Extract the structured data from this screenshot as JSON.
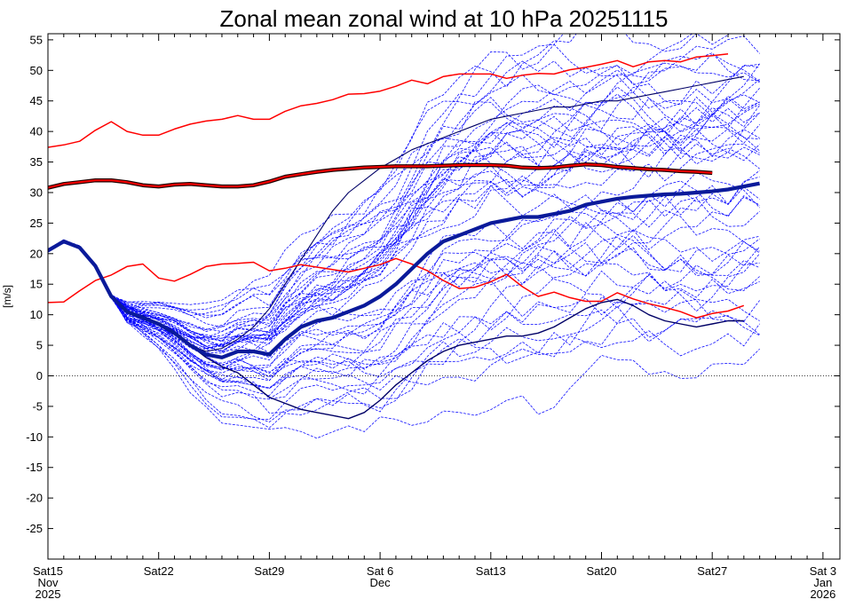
{
  "chart_data": {
    "type": "line",
    "title": "Zonal mean zonal wind at 10 hPa 20251115",
    "ylabel": "[m/s]",
    "xlabel": "",
    "xlim": [
      0,
      49
    ],
    "ylim": [
      -30,
      56
    ],
    "yticks": [
      -25,
      -20,
      -15,
      -10,
      -5,
      0,
      5,
      10,
      15,
      20,
      25,
      30,
      35,
      40,
      45,
      50,
      55
    ],
    "xticks": [
      {
        "x": 0,
        "lines": [
          "Sat15",
          "Nov",
          "2025"
        ]
      },
      {
        "x": 7,
        "lines": [
          "Sat22"
        ]
      },
      {
        "x": 14,
        "lines": [
          "Sat29"
        ]
      },
      {
        "x": 21,
        "lines": [
          "Sat 6",
          "Dec"
        ]
      },
      {
        "x": 28,
        "lines": [
          "Sat13"
        ]
      },
      {
        "x": 35,
        "lines": [
          "Sat20"
        ]
      },
      {
        "x": 42,
        "lines": [
          "Sat27"
        ]
      },
      {
        "x": 49,
        "lines": [
          "Sat 3",
          "Jan",
          "2026"
        ]
      }
    ],
    "zero_line": 0,
    "colors": {
      "climatology": "#ff0000",
      "ensemble": "#0000ff",
      "ensemble_mean": "#0a1a9a",
      "control": "#000066"
    },
    "series": [
      {
        "name": "Climatology mean",
        "style": "clim-mean",
        "values": [
          30.8,
          31.4,
          31.7,
          32.0,
          32.0,
          31.7,
          31.2,
          31.0,
          31.3,
          31.4,
          31.2,
          31.0,
          31.0,
          31.2,
          31.8,
          32.6,
          33.0,
          33.4,
          33.7,
          33.9,
          34.1,
          34.2,
          34.3,
          34.3,
          34.3,
          34.4,
          34.5,
          34.5,
          34.5,
          34.4,
          34.1,
          34.0,
          34.1,
          34.4,
          34.6,
          34.5,
          34.2,
          34.0,
          33.8,
          33.7,
          33.5,
          33.4,
          33.2
        ]
      },
      {
        "name": "Climatology max",
        "style": "clim-bound",
        "values": [
          37.4,
          37.8,
          38.4,
          40.2,
          41.6,
          40.0,
          39.4,
          39.4,
          40.4,
          41.2,
          41.7,
          42.0,
          42.6,
          42.0,
          42.0,
          43.3,
          44.2,
          44.6,
          45.2,
          46.1,
          46.2,
          46.6,
          47.4,
          48.4,
          47.8,
          49.0,
          49.4,
          49.4,
          49.4,
          48.7,
          49.2,
          49.5,
          49.4,
          50.1,
          50.5,
          51.0,
          51.6,
          50.6,
          51.4,
          51.6,
          51.4,
          52.2,
          52.4,
          52.7
        ]
      },
      {
        "name": "Climatology min",
        "style": "clim-bound",
        "values": [
          12.0,
          12.1,
          13.9,
          15.6,
          16.5,
          17.9,
          18.3,
          16.0,
          15.5,
          16.6,
          17.9,
          18.3,
          18.4,
          18.6,
          17.2,
          17.6,
          18.2,
          17.8,
          17.4,
          17.0,
          17.6,
          18.2,
          19.2,
          18.3,
          17.2,
          15.6,
          14.3,
          14.5,
          15.4,
          16.6,
          14.6,
          13.0,
          13.7,
          12.8,
          12.2,
          12.2,
          13.6,
          12.6,
          11.8,
          11.2,
          10.5,
          9.5,
          10.2,
          10.6,
          11.5
        ]
      },
      {
        "name": "Ensemble mean",
        "style": "ens-mean",
        "values": [
          20.5,
          22.0,
          21.0,
          18.0,
          13.0,
          10.5,
          9.5,
          8.5,
          7.0,
          5.0,
          3.5,
          3.0,
          4.0,
          4.0,
          3.5,
          6.0,
          8.0,
          9.0,
          9.5,
          10.5,
          11.5,
          13.0,
          15.0,
          17.5,
          20.0,
          22.0,
          23.0,
          24.0,
          25.0,
          25.5,
          26.0,
          26.0,
          26.5,
          27.0,
          28.0,
          28.5,
          29.0,
          29.3,
          29.5,
          29.7,
          29.8,
          30.0,
          30.2,
          30.5,
          31.0,
          31.5
        ]
      },
      {
        "name": "Control forecast",
        "style": "control",
        "values": [
          20.5,
          22.0,
          21.0,
          18.0,
          13.0,
          10.5,
          9.8,
          8.5,
          7.0,
          5.0,
          3.0,
          1.5,
          0.5,
          -1.5,
          -3.5,
          -4.5,
          -5.5,
          -6.0,
          -6.5,
          -7.0,
          -6.0,
          -4.0,
          -1.5,
          0.5,
          2.5,
          4.0,
          5.0,
          5.5,
          6.0,
          6.5,
          6.5,
          7.0,
          8.0,
          9.5,
          11.0,
          12.0,
          12.5,
          11.5,
          10.0,
          9.0,
          8.5,
          8.0,
          8.5,
          9.0,
          9.0
        ]
      },
      {
        "name": "Ensemble member high",
        "style": "member-solid",
        "values": [
          20.5,
          22.0,
          21.0,
          18.0,
          13.0,
          10.5,
          9.5,
          8.5,
          7.0,
          5.0,
          4.0,
          4.5,
          6.0,
          8.0,
          11.0,
          15.0,
          19.0,
          23.0,
          27.0,
          30.0,
          32.0,
          34.0,
          35.5,
          37.0,
          38.0,
          39.0,
          40.0,
          41.0,
          42.0,
          42.5,
          43.0,
          43.5,
          44.0,
          44.0,
          44.5,
          45.0,
          45.0,
          45.5,
          46.0,
          46.5,
          47.0,
          47.5,
          48.0,
          48.5,
          49.0
        ]
      }
    ],
    "ensemble_members": 50
  }
}
